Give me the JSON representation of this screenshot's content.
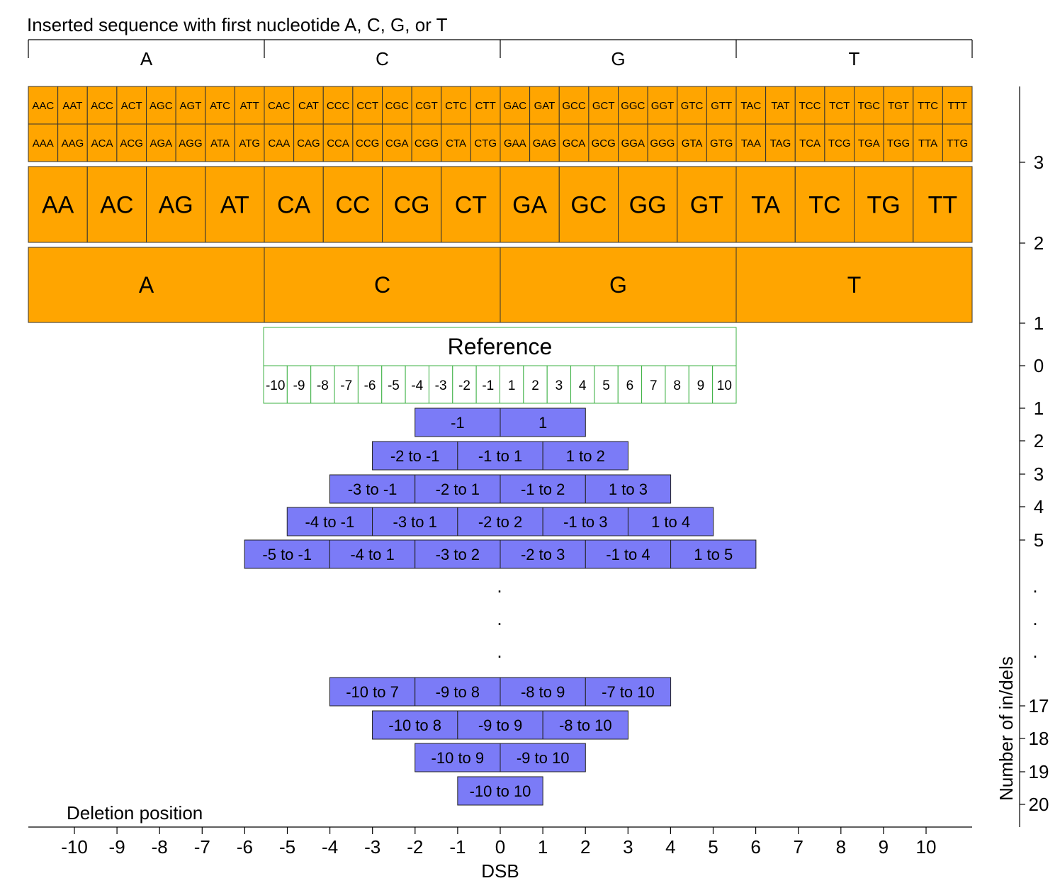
{
  "title": "Inserted sequence with first nucleotide A, C, G, or T",
  "deletion_label": "Deletion position",
  "x_axis_label": "DSB",
  "y_axis_label": "Number of in/dels",
  "first_nucleotides": [
    "A",
    "C",
    "G",
    "T"
  ],
  "insert_1": [
    "A",
    "C",
    "G",
    "T"
  ],
  "insert_2": [
    "AA",
    "AC",
    "AG",
    "AT",
    "CA",
    "CC",
    "CG",
    "CT",
    "GA",
    "GC",
    "GG",
    "GT",
    "TA",
    "TC",
    "TG",
    "TT"
  ],
  "insert_3_top": [
    "AAC",
    "AAT",
    "ACC",
    "ACT",
    "AGC",
    "AGT",
    "ATC",
    "ATT",
    "CAC",
    "CAT",
    "CCC",
    "CCT",
    "CGC",
    "CGT",
    "CTC",
    "CTT",
    "GAC",
    "GAT",
    "GCC",
    "GCT",
    "GGC",
    "GGT",
    "GTC",
    "GTT",
    "TAC",
    "TAT",
    "TCC",
    "TCT",
    "TGC",
    "TGT",
    "TTC",
    "TTT"
  ],
  "insert_3_bottom": [
    "AAA",
    "AAG",
    "ACA",
    "ACG",
    "AGA",
    "AGG",
    "ATA",
    "ATG",
    "CAA",
    "CAG",
    "CCA",
    "CCG",
    "CGA",
    "CGG",
    "CTA",
    "CTG",
    "GAA",
    "GAG",
    "GCA",
    "GCG",
    "GGA",
    "GGG",
    "GTA",
    "GTG",
    "TAA",
    "TAG",
    "TCA",
    "TCG",
    "TGA",
    "TGG",
    "TTA",
    "TTG"
  ],
  "reference": {
    "label": "Reference",
    "positions": [
      "-10",
      "-9",
      "-8",
      "-7",
      "-6",
      "-5",
      "-4",
      "-3",
      "-2",
      "-1",
      "1",
      "2",
      "3",
      "4",
      "5",
      "6",
      "7",
      "8",
      "9",
      "10"
    ]
  },
  "deletion_rows": [
    {
      "indels": 1,
      "labels": [
        "-1",
        "1"
      ]
    },
    {
      "indels": 2,
      "labels": [
        "-2 to -1",
        "-1 to 1",
        "1 to 2"
      ]
    },
    {
      "indels": 3,
      "labels": [
        "-3 to -1",
        "-2 to 1",
        "-1 to 2",
        "1 to 3"
      ]
    },
    {
      "indels": 4,
      "labels": [
        "-4 to -1",
        "-3 to 1",
        "-2 to 2",
        "-1 to 3",
        "1 to 4"
      ]
    },
    {
      "indels": 5,
      "labels": [
        "-5 to -1",
        "-4 to 1",
        "-3 to 2",
        "-2 to 3",
        "-1 to 4",
        "1 to 5"
      ]
    },
    {
      "indels": 17,
      "labels": [
        "-10 to 7",
        "-9 to 8",
        "-8 to 9",
        "-7 to 10"
      ]
    },
    {
      "indels": 18,
      "labels": [
        "-10 to 8",
        "-9 to 9",
        "-8 to 10"
      ]
    },
    {
      "indels": 19,
      "labels": [
        "-10 to 9",
        "-9 to 10"
      ]
    },
    {
      "indels": 20,
      "labels": [
        "-10 to 10"
      ]
    }
  ],
  "x_ticks": [
    "-10",
    "-9",
    "-8",
    "-7",
    "-6",
    "-5",
    "-4",
    "-3",
    "-2",
    "-1",
    "0",
    "1",
    "2",
    "3",
    "4",
    "5",
    "6",
    "7",
    "8",
    "9",
    "10"
  ],
  "y_ticks_insertion": [
    "3",
    "2",
    "1"
  ],
  "y_tick_reference": "0",
  "y_ticks_deletion": [
    "1",
    "2",
    "3",
    "4",
    "5",
    "17",
    "18",
    "19",
    "20"
  ],
  "ellipsis": "."
}
